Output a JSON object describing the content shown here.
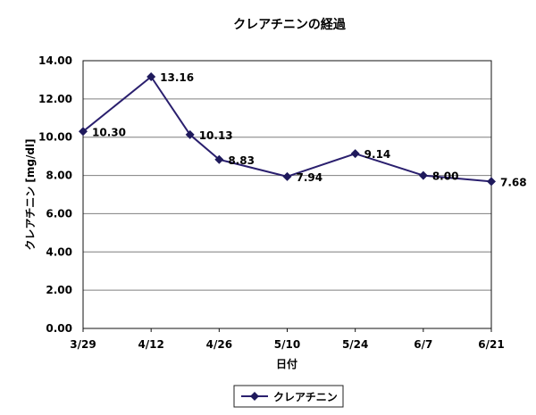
{
  "chart_data": {
    "type": "line",
    "title": "クレアチニンの経過",
    "xlabel": "日付",
    "ylabel": "クレアチニン [mg/dl]",
    "x_ticks": [
      "3/29",
      "4/12",
      "4/26",
      "5/10",
      "5/24",
      "6/7",
      "6/21"
    ],
    "y_ticks": [
      "0.00",
      "2.00",
      "4.00",
      "6.00",
      "8.00",
      "10.00",
      "12.00",
      "14.00"
    ],
    "ylim": [
      0,
      14
    ],
    "x_day_offsets": [
      0,
      14,
      28,
      42,
      56,
      70,
      84
    ],
    "grid": true,
    "legend_position": "bottom",
    "colors": {
      "line": "#2a1f6e",
      "marker": "#1f1a5c",
      "grid": "#7f7f7f",
      "axis": "#111111"
    },
    "series": [
      {
        "name": "クレアチニン",
        "points": [
          {
            "day": 0,
            "value": 10.3,
            "label": "10.30"
          },
          {
            "day": 14,
            "value": 13.16,
            "label": "13.16"
          },
          {
            "day": 22,
            "value": 10.13,
            "label": "10.13"
          },
          {
            "day": 28,
            "value": 8.83,
            "label": "8.83"
          },
          {
            "day": 42,
            "value": 7.94,
            "label": "7.94"
          },
          {
            "day": 56,
            "value": 9.14,
            "label": "9.14"
          },
          {
            "day": 70,
            "value": 8.0,
            "label": "8.00"
          },
          {
            "day": 84,
            "value": 7.68,
            "label": "7.68"
          }
        ]
      }
    ]
  }
}
